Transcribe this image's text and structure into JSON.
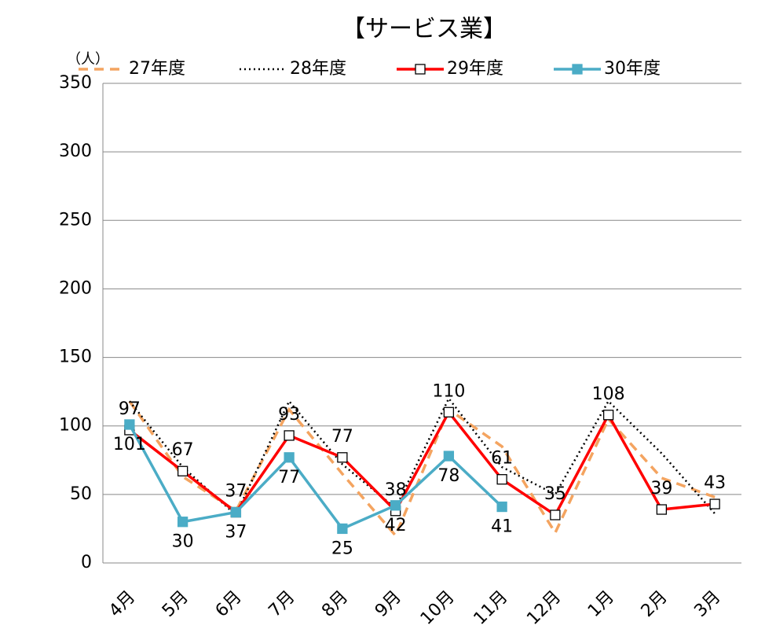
{
  "chart_data": {
    "type": "line",
    "title": "【サービス業】",
    "y_unit": "（人）",
    "categories": [
      "4月",
      "5月",
      "6月",
      "7月",
      "8月",
      "9月",
      "10月",
      "11月",
      "12月",
      "1月",
      "2月",
      "3月"
    ],
    "series": [
      {
        "name": "27年度",
        "color": "#f4a460",
        "dash": "dashed",
        "marker": "none",
        "labels": false,
        "values": [
          118,
          63,
          38,
          112,
          65,
          20,
          112,
          85,
          22,
          105,
          62,
          48
        ]
      },
      {
        "name": "28年度",
        "color": "#000000",
        "dash": "dotted",
        "marker": "none",
        "labels": false,
        "values": [
          118,
          70,
          35,
          118,
          72,
          40,
          120,
          70,
          50,
          118,
          80,
          36
        ]
      },
      {
        "name": "29年度",
        "color": "#ff0000",
        "dash": "solid",
        "marker": "square-open",
        "labels": true,
        "label_side": "above",
        "values": [
          97,
          67,
          37,
          93,
          77,
          38,
          110,
          61,
          35,
          108,
          39,
          43
        ]
      },
      {
        "name": "30年度",
        "color": "#4bacc6",
        "dash": "solid",
        "marker": "square",
        "labels": true,
        "label_side": "below",
        "values": [
          101,
          30,
          37,
          77,
          25,
          42,
          78,
          41,
          null,
          null,
          null,
          null
        ]
      }
    ],
    "ylim": [
      0,
      350
    ],
    "yticks": [
      0,
      50,
      100,
      150,
      200,
      250,
      300,
      350
    ],
    "grid": true
  }
}
